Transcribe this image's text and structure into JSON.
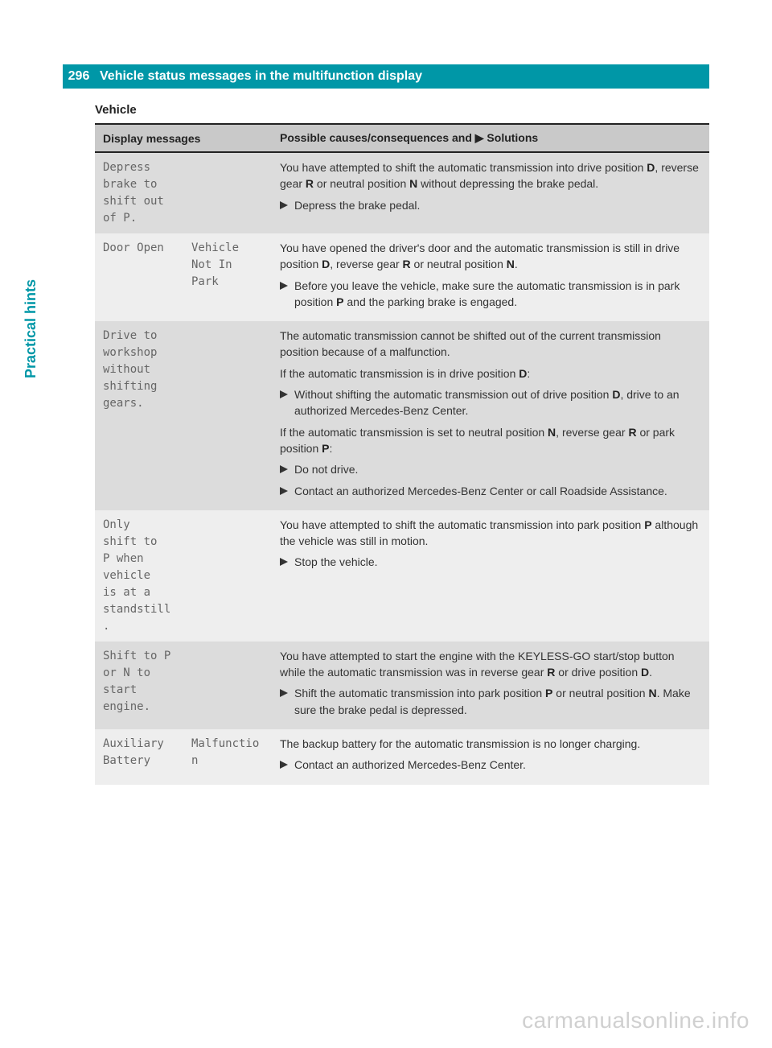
{
  "colors": {
    "brand": "#0097a7",
    "header_row_bg": "#c9c9c9",
    "row_odd_bg": "#dcdcdc",
    "row_even_bg": "#eeeeee",
    "mono_text": "#666666",
    "body_text": "#333333",
    "watermark": "#d0d0d0"
  },
  "header": {
    "page_number": "296",
    "title": "Vehicle status messages in the multifunction display"
  },
  "side_label": "Practical hints",
  "section_title": "Vehicle",
  "columns": {
    "c1": "Display messages",
    "c2": "Possible causes/consequences and ▶ Solutions"
  },
  "rows": [
    {
      "msg1": "Depress brake to shift out of P.",
      "msg2": "",
      "desc": [
        "You have attempted to shift the automatic transmission into drive position <b>D</b>, reverse gear <b>R</b> or neutral position <b>N</b> without depressing the brake pedal."
      ],
      "actions": [
        "Depress the brake pedal."
      ]
    },
    {
      "msg1": "Door Open",
      "msg2": "Vehicle Not In Park",
      "desc": [
        "You have opened the driver's door and the automatic transmission is still in drive position <b>D</b>, reverse gear <b>R</b> or neutral position <b>N</b>."
      ],
      "actions": [
        "Before you leave the vehicle, make sure the automatic transmission is in park position <b>P</b> and the parking brake is engaged."
      ]
    },
    {
      "msg1": "Drive to workshop without shifting gears.",
      "msg2": "",
      "blocks": [
        {
          "type": "p",
          "text": "The automatic transmission cannot be shifted out of the current transmission position because of a malfunction."
        },
        {
          "type": "p",
          "text": "If the automatic transmission is in drive position <b>D</b>:"
        },
        {
          "type": "a",
          "text": "Without shifting the automatic transmission out of drive position <b>D</b>, drive to an authorized Mercedes-Benz Center."
        },
        {
          "type": "p",
          "text": "If the automatic transmission is set to neutral position <b>N</b>, reverse gear <b>R</b> or park position <b>P</b>:"
        },
        {
          "type": "a",
          "text": "Do not drive."
        },
        {
          "type": "a",
          "text": "Contact an authorized Mercedes-Benz Center or call Roadside Assistance."
        }
      ]
    },
    {
      "msg1": "Only shift to P when vehicle is at a standstill.",
      "msg2": "",
      "desc": [
        "You have attempted to shift the automatic transmission into park position <b>P</b> although the vehicle was still in motion."
      ],
      "actions": [
        "Stop the vehicle."
      ]
    },
    {
      "msg1": "Shift to P or N to start engine.",
      "msg2": "",
      "desc": [
        "You have attempted to start the engine with the KEYLESS-GO start/stop button while the automatic transmission was in reverse gear <b>R</b> or drive position <b>D</b>."
      ],
      "actions": [
        "Shift the automatic transmission into park position <b>P</b> or neutral position <b>N</b>. Make sure the brake pedal is depressed."
      ]
    },
    {
      "msg1": "Auxiliary Battery",
      "msg2": "Malfunction",
      "desc": [
        "The backup battery for the automatic transmission is no longer charging."
      ],
      "actions": [
        "Contact an authorized Mercedes-Benz Center."
      ]
    }
  ],
  "watermark": "carmanualsonline.info"
}
